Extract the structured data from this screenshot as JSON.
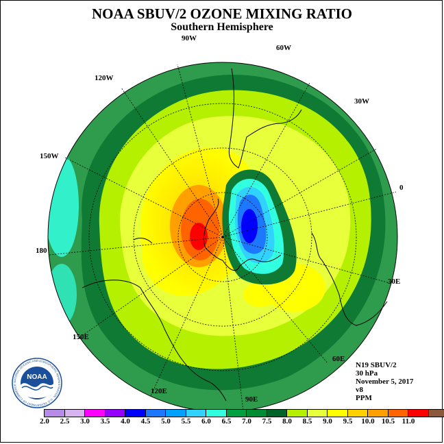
{
  "title": "NOAA SBUV/2 OZONE MIXING RATIO",
  "subtitle": "Southern Hemisphere",
  "longitude_labels": [
    "90W",
    "60W",
    "30W",
    "0",
    "30E",
    "60E",
    "90E",
    "120E",
    "150E",
    "180",
    "150W",
    "120W"
  ],
  "info": {
    "satellite": "N19 SBUV/2",
    "level": "30 hPa",
    "date": "November 5, 2017",
    "version": "v8",
    "units": "PPM"
  },
  "colorbar": {
    "labels": [
      "2.0",
      "2.5",
      "3.0",
      "3.5",
      "4.0",
      "4.5",
      "5.0",
      "5.5",
      "6.0",
      "6.5",
      "7.0",
      "7.5",
      "8.0",
      "8.5",
      "9.0",
      "9.5",
      "10.0",
      "10.5",
      "11.0"
    ],
    "colors": [
      "#b78ce8",
      "#d7b4f0",
      "#ff00ff",
      "#9600ff",
      "#0000ff",
      "#1e78ff",
      "#00a0ff",
      "#32d2ff",
      "#32ffe0",
      "#00a040",
      "#008c32",
      "#006428",
      "#b4f000",
      "#e8ff3c",
      "#ffff00",
      "#ffd000",
      "#ffa000",
      "#ff6400",
      "#ff0000",
      "#8b5a3c"
    ]
  },
  "logo_text": {
    "center": "NOAA",
    "ring": "NATIONAL OCEANIC AND ATMOSPHERIC ADMINISTRATION · U.S. DEPARTMENT OF COMMERCE"
  }
}
